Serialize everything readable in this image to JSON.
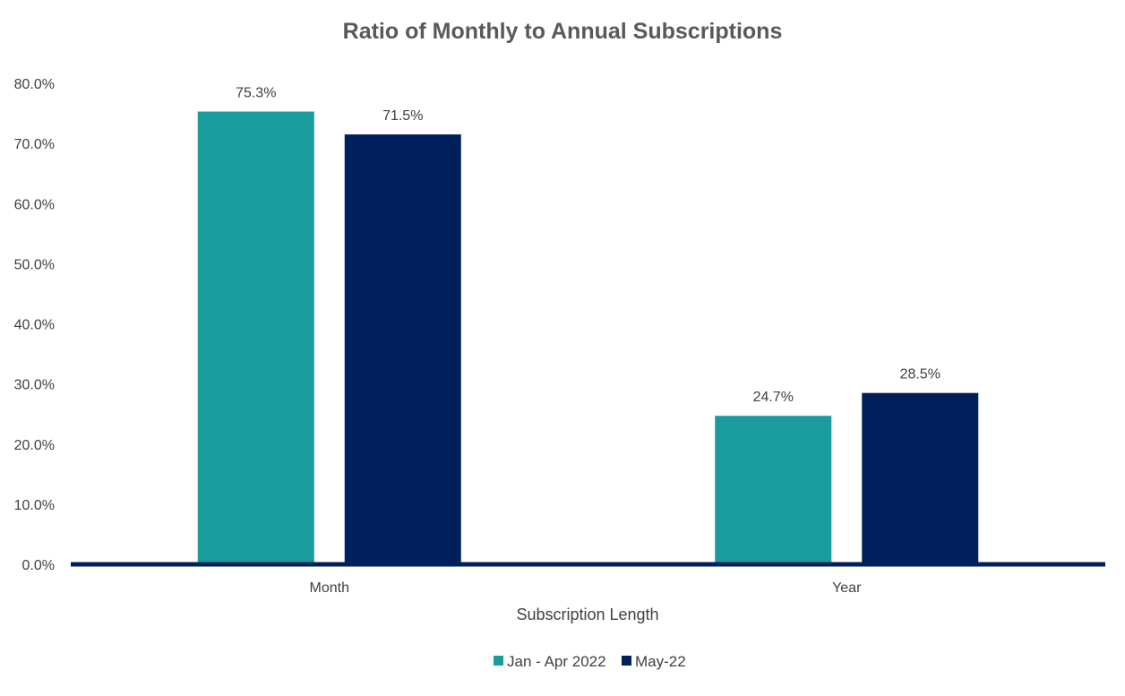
{
  "chart_data": {
    "type": "bar",
    "title": "Ratio of Monthly to Annual Subscriptions",
    "xlabel": "Subscription Length",
    "ylabel": "",
    "categories": [
      "Month",
      "Year"
    ],
    "series": [
      {
        "name": "Jan - Apr 2022",
        "color": "#1b9c9c",
        "values": [
          75.3,
          24.7
        ],
        "labels": [
          "75.3%",
          "24.7%"
        ]
      },
      {
        "name": "May-22",
        "color": "#00205b",
        "values": [
          71.5,
          28.5
        ],
        "labels": [
          "71.5%",
          "28.5%"
        ]
      }
    ],
    "ylim": [
      0,
      80
    ],
    "yticks": [
      {
        "value": 0,
        "label": "0.0%"
      },
      {
        "value": 10,
        "label": "10.0%"
      },
      {
        "value": 20,
        "label": "20.0%"
      },
      {
        "value": 30,
        "label": "30.0%"
      },
      {
        "value": 40,
        "label": "40.0%"
      },
      {
        "value": 50,
        "label": "50.0%"
      },
      {
        "value": 60,
        "label": "60.0%"
      },
      {
        "value": 70,
        "label": "70.0%"
      },
      {
        "value": 80,
        "label": "80.0%"
      }
    ],
    "grid": false,
    "legend_position": "bottom-center",
    "axis_color": "#00205b"
  }
}
